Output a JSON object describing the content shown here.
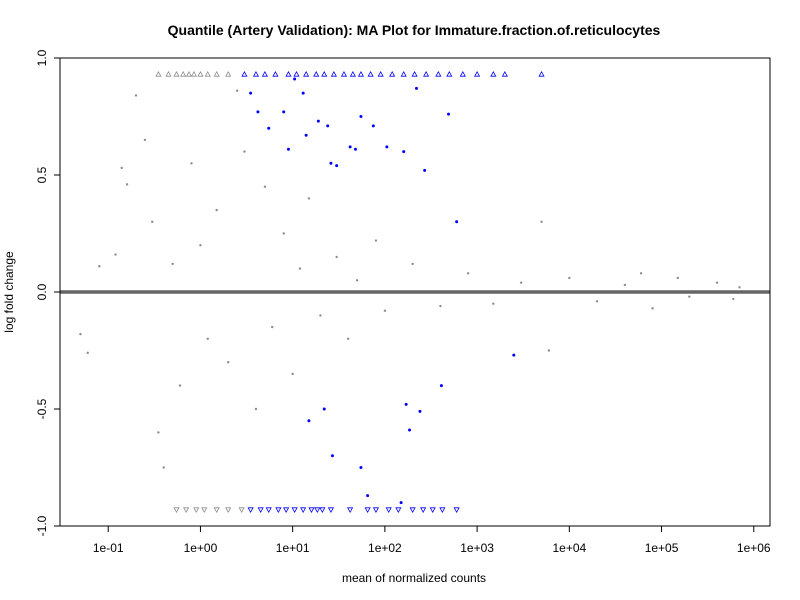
{
  "chart_data": {
    "type": "scatter",
    "title": "Quantile (Artery Validation): MA Plot for Immature.fraction.of.reticulocytes",
    "xlabel": "mean of normalized counts",
    "ylabel": "log fold change",
    "x_scale": "log10",
    "xlim": [
      0.03,
      1500000
    ],
    "ylim": [
      -1.0,
      1.0
    ],
    "x_ticks": [
      {
        "value": 0.1,
        "label": "1e-01"
      },
      {
        "value": 1,
        "label": "1e+00"
      },
      {
        "value": 10,
        "label": "1e+01"
      },
      {
        "value": 100,
        "label": "1e+02"
      },
      {
        "value": 1000,
        "label": "1e+03"
      },
      {
        "value": 10000,
        "label": "1e+04"
      },
      {
        "value": 100000,
        "label": "1e+05"
      },
      {
        "value": 1000000,
        "label": "1e+06"
      }
    ],
    "y_ticks": [
      {
        "value": -1.0,
        "label": "-1.0"
      },
      {
        "value": -0.5,
        "label": "-0.5"
      },
      {
        "value": 0.0,
        "label": "0.0"
      },
      {
        "value": 0.5,
        "label": "0.5"
      },
      {
        "value": 1.0,
        "label": "1.0"
      }
    ],
    "reference_line": {
      "y": 0.0,
      "color": "#666666"
    },
    "colors": {
      "not_significant": "#8c8c8c",
      "significant": "#0000ff",
      "reference_line": "#666666"
    },
    "series": [
      {
        "points": [
          [
            0.05,
            -0.18
          ],
          [
            0.06,
            -0.26
          ],
          [
            0.08,
            0.11
          ],
          [
            0.12,
            0.16
          ],
          [
            0.14,
            0.53
          ],
          [
            0.16,
            0.46
          ],
          [
            0.2,
            0.84
          ],
          [
            0.25,
            0.65
          ],
          [
            0.3,
            0.3
          ],
          [
            0.35,
            -0.6
          ],
          [
            0.4,
            -0.75
          ],
          [
            0.5,
            0.12
          ],
          [
            0.6,
            -0.4
          ],
          [
            0.8,
            0.55
          ],
          [
            1.0,
            0.2
          ],
          [
            1.2,
            -0.2
          ],
          [
            1.5,
            0.35
          ],
          [
            2.0,
            -0.3
          ],
          [
            2.5,
            0.86
          ],
          [
            3.0,
            0.6
          ],
          [
            4.0,
            -0.5
          ],
          [
            5.0,
            0.45
          ],
          [
            6.0,
            -0.15
          ],
          [
            8.0,
            0.25
          ],
          [
            10.0,
            -0.35
          ],
          [
            12.0,
            0.1
          ],
          [
            15.0,
            0.4
          ],
          [
            20.0,
            -0.1
          ],
          [
            30.0,
            0.15
          ],
          [
            40.0,
            -0.2
          ],
          [
            50.0,
            0.05
          ],
          [
            80.0,
            0.22
          ],
          [
            100.0,
            -0.08
          ],
          [
            200.0,
            0.12
          ],
          [
            400.0,
            -0.06
          ],
          [
            800.0,
            0.08
          ],
          [
            1500.0,
            -0.05
          ],
          [
            3000.0,
            0.04
          ],
          [
            5000.0,
            0.3
          ],
          [
            6000.0,
            -0.25
          ],
          [
            10000.0,
            0.06
          ],
          [
            20000.0,
            -0.04
          ],
          [
            40000.0,
            0.03
          ],
          [
            60000.0,
            0.08
          ],
          [
            80000.0,
            -0.07
          ],
          [
            150000.0,
            0.06
          ],
          [
            200000.0,
            -0.02
          ],
          [
            400000.0,
            0.04
          ],
          [
            700000.0,
            0.02
          ],
          [
            600000.0,
            -0.03
          ]
        ]
      },
      {
        "points": [
          [
            3.5,
            0.85
          ],
          [
            4.2,
            0.77
          ],
          [
            5.5,
            0.7
          ],
          [
            8.0,
            0.77
          ],
          [
            9.0,
            0.61
          ],
          [
            10.5,
            0.91
          ],
          [
            13.0,
            0.85
          ],
          [
            14.0,
            0.67
          ],
          [
            19.0,
            0.73
          ],
          [
            24.0,
            0.71
          ],
          [
            26.0,
            0.55
          ],
          [
            30.0,
            0.54
          ],
          [
            42.0,
            0.62
          ],
          [
            48.0,
            0.61
          ],
          [
            55.0,
            0.75
          ],
          [
            75.0,
            0.71
          ],
          [
            105.0,
            0.62
          ],
          [
            160.0,
            0.6
          ],
          [
            220.0,
            0.87
          ],
          [
            270.0,
            0.52
          ],
          [
            490.0,
            0.76
          ],
          [
            600.0,
            0.3
          ],
          [
            15.0,
            -0.55
          ],
          [
            22.0,
            -0.5
          ],
          [
            27.0,
            -0.7
          ],
          [
            55.0,
            -0.75
          ],
          [
            65.0,
            -0.87
          ],
          [
            150.0,
            -0.9
          ],
          [
            170.0,
            -0.48
          ],
          [
            185.0,
            -0.59
          ],
          [
            240.0,
            -0.51
          ],
          [
            410.0,
            -0.4
          ],
          [
            2500.0,
            -0.27
          ]
        ]
      },
      {
        "points": [
          [
            0.35,
            0.93
          ],
          [
            0.45,
            0.93
          ],
          [
            0.55,
            0.93
          ],
          [
            0.65,
            0.93
          ],
          [
            0.75,
            0.93
          ],
          [
            0.85,
            0.93
          ],
          [
            1.0,
            0.93
          ],
          [
            1.2,
            0.93
          ],
          [
            1.5,
            0.93
          ],
          [
            2.0,
            0.93
          ],
          [
            3.0,
            0.93
          ],
          [
            4.0,
            0.93
          ],
          [
            5.0,
            0.93
          ],
          [
            6.5,
            0.93
          ],
          [
            9.0,
            0.93
          ],
          [
            11.0,
            0.93
          ],
          [
            14.0,
            0.93
          ],
          [
            18.0,
            0.93
          ],
          [
            22.0,
            0.93
          ],
          [
            28.0,
            0.93
          ],
          [
            36.0,
            0.93
          ],
          [
            45.0,
            0.93
          ],
          [
            55.0,
            0.93
          ],
          [
            70.0,
            0.93
          ],
          [
            90.0,
            0.93
          ],
          [
            120.0,
            0.93
          ],
          [
            160.0,
            0.93
          ],
          [
            210.0,
            0.93
          ],
          [
            280.0,
            0.93
          ],
          [
            380.0,
            0.93
          ],
          [
            500.0,
            0.93
          ],
          [
            700.0,
            0.93
          ],
          [
            1000.0,
            0.93
          ],
          [
            1500.0,
            0.93
          ],
          [
            2000.0,
            0.93
          ],
          [
            5000.0,
            0.93
          ]
        ]
      },
      {
        "points": [
          [
            0.55,
            -0.93
          ],
          [
            0.7,
            -0.93
          ],
          [
            0.9,
            -0.93
          ],
          [
            1.1,
            -0.93
          ],
          [
            1.5,
            -0.93
          ],
          [
            2.0,
            -0.93
          ],
          [
            2.8,
            -0.93
          ],
          [
            3.5,
            -0.93
          ],
          [
            4.5,
            -0.93
          ],
          [
            5.5,
            -0.93
          ],
          [
            7.0,
            -0.93
          ],
          [
            8.5,
            -0.93
          ],
          [
            10.5,
            -0.93
          ],
          [
            13.0,
            -0.93
          ],
          [
            16.0,
            -0.93
          ],
          [
            18.5,
            -0.93
          ],
          [
            21.0,
            -0.93
          ],
          [
            26.0,
            -0.93
          ],
          [
            42.0,
            -0.93
          ],
          [
            65.0,
            -0.93
          ],
          [
            80.0,
            -0.93
          ],
          [
            110.0,
            -0.93
          ],
          [
            140.0,
            -0.93
          ],
          [
            200.0,
            -0.93
          ],
          [
            260.0,
            -0.93
          ],
          [
            330.0,
            -0.93
          ],
          [
            420.0,
            -0.93
          ],
          [
            600.0,
            -0.93
          ]
        ]
      }
    ]
  }
}
